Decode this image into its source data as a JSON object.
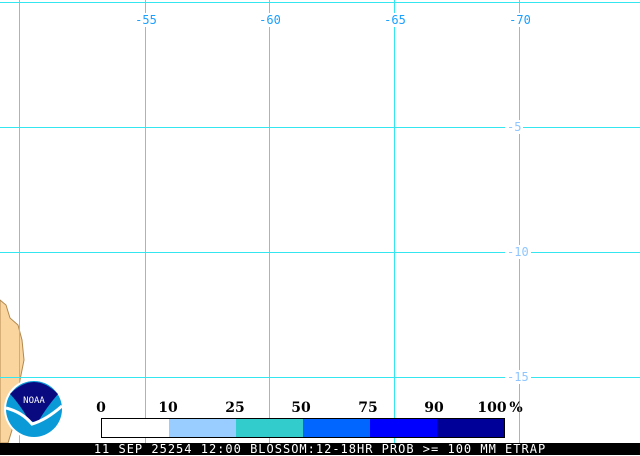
{
  "map": {
    "longitude_labels": [
      "-55",
      "-60",
      "-65",
      "-70"
    ],
    "latitude_labels": [
      "-5",
      "-10",
      "-15"
    ],
    "grid_color": "#33e6f0",
    "land_color": "#fad69e"
  },
  "legend": {
    "ticks": [
      "0",
      "10",
      "25",
      "50",
      "75",
      "90",
      "100"
    ],
    "unit": "%",
    "colors": [
      "#ffffff",
      "#99ccff",
      "#33cccc",
      "#0066ff",
      "#0000ff",
      "#000099"
    ]
  },
  "logo": {
    "text": "NOAA"
  },
  "footer": {
    "caption": "11 SEP 25254 12:00 BLOSSOM:12-18HR PROB >= 100 MM ETRAP"
  }
}
